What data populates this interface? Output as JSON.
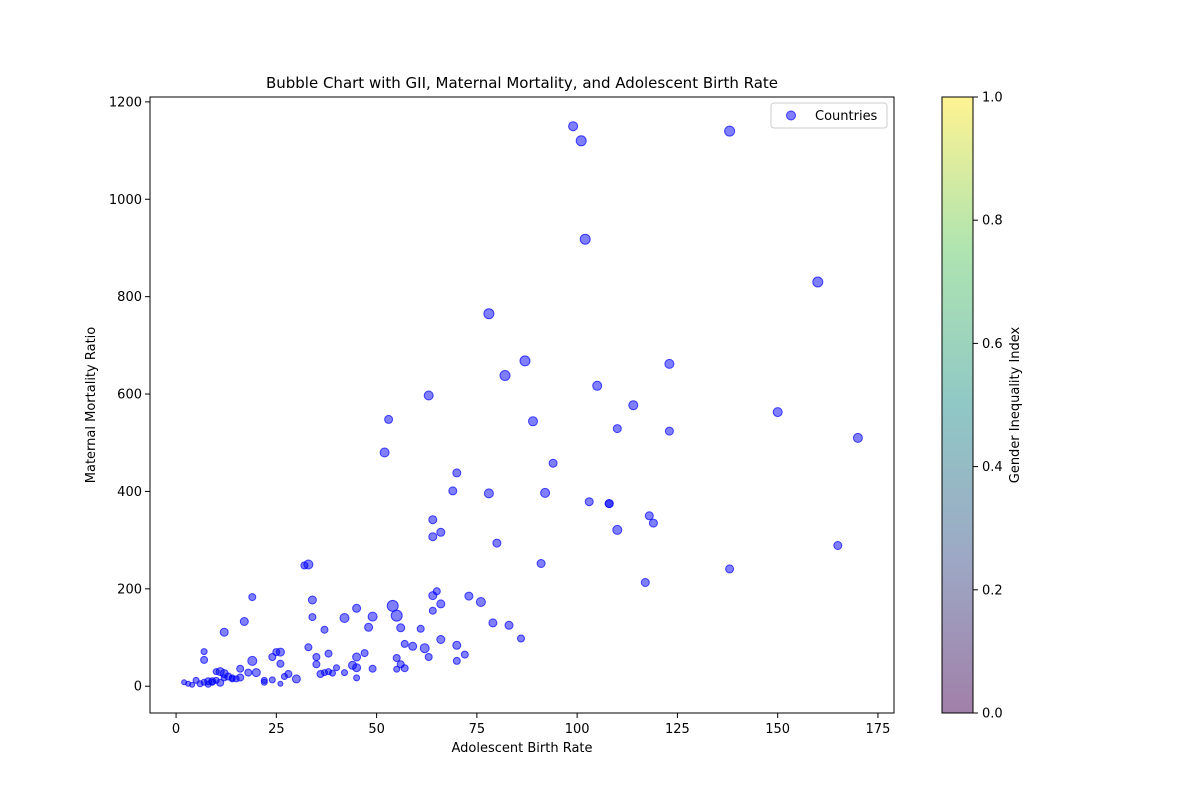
{
  "chart_data": {
    "type": "scatter",
    "title": "Bubble Chart with GII, Maternal Mortality, and Adolescent Birth Rate",
    "xlabel": "Adolescent Birth Rate",
    "ylabel": "Maternal Mortality Ratio",
    "xlim": [
      -6.5,
      179
    ],
    "ylim": [
      -55,
      1210
    ],
    "xticks": [
      0,
      25,
      50,
      75,
      100,
      125,
      150,
      175
    ],
    "yticks": [
      0,
      200,
      400,
      600,
      800,
      1000,
      1200
    ],
    "legend": {
      "label": "Countries",
      "location": "upper right"
    },
    "marker_color": "#0000ff",
    "marker_alpha": 0.5,
    "colorbar": {
      "label": "Gender Inequality Index",
      "range": [
        0.0,
        1.0
      ],
      "ticks": [
        "0.0",
        "0.2",
        "0.4",
        "0.6",
        "0.8",
        "1.0"
      ],
      "colormap": "viridis"
    },
    "series": [
      {
        "name": "Countries",
        "x": [
          99,
          101,
          138,
          102,
          160,
          78,
          87,
          82,
          123,
          63,
          105,
          114,
          53,
          150,
          89,
          110,
          123,
          170,
          52,
          94,
          108,
          70,
          69,
          78,
          92,
          103,
          108,
          118,
          119,
          110,
          64,
          66,
          64,
          80,
          165,
          91,
          138,
          117,
          33,
          32,
          19,
          65,
          34,
          73,
          76,
          64,
          66,
          54,
          45,
          55,
          49,
          34,
          42,
          48,
          79,
          83,
          37,
          56,
          86,
          64,
          66,
          61,
          70,
          57,
          62,
          17,
          12,
          59,
          63,
          72,
          47,
          45,
          55,
          70,
          35,
          7,
          19,
          24,
          25,
          26,
          33,
          38,
          44,
          35,
          26,
          56,
          57,
          45,
          49,
          55,
          20,
          16,
          7,
          11,
          12,
          18,
          10,
          8,
          9,
          6,
          5,
          4,
          3,
          2,
          15,
          16,
          13,
          12,
          9,
          10,
          22,
          30,
          28,
          27,
          36,
          37,
          40,
          39,
          38,
          42,
          14,
          14,
          11,
          7,
          8,
          45,
          22,
          24,
          26
        ],
        "y": [
          1150,
          1120,
          1140,
          918,
          830,
          765,
          668,
          638,
          662,
          597,
          617,
          577,
          548,
          563,
          544,
          529,
          524,
          510,
          480,
          458,
          375,
          438,
          401,
          396,
          397,
          379,
          375,
          350,
          335,
          321,
          342,
          316,
          307,
          294,
          289,
          252,
          241,
          213,
          250,
          248,
          183,
          195,
          177,
          185,
          173,
          186,
          169,
          165,
          160,
          145,
          143,
          142,
          140,
          121,
          130,
          125,
          116,
          120,
          98,
          155,
          96,
          118,
          84,
          87,
          78,
          133,
          111,
          82,
          60,
          65,
          68,
          60,
          58,
          52,
          60,
          71,
          52,
          60,
          70,
          70,
          80,
          67,
          43,
          45,
          46,
          45,
          37,
          38,
          36,
          35,
          28,
          36,
          54,
          30,
          26,
          28,
          30,
          10,
          8,
          5,
          12,
          3,
          5,
          8,
          15,
          18,
          20,
          17,
          10,
          12,
          12,
          15,
          25,
          20,
          25,
          28,
          38,
          27,
          30,
          28,
          15,
          17,
          7,
          8,
          4,
          17,
          8,
          13,
          5
        ],
        "size": [
          9,
          10,
          10,
          10,
          10,
          10,
          10,
          10,
          9,
          9,
          9,
          9,
          8,
          9,
          9,
          8,
          8,
          9,
          9,
          8,
          8,
          8,
          8,
          9,
          9,
          8,
          8,
          8,
          8,
          9,
          8,
          8,
          8,
          8,
          8,
          8,
          8,
          8,
          9,
          7,
          7,
          7,
          8,
          8,
          9,
          8,
          8,
          11,
          8,
          11,
          9,
          7,
          9,
          8,
          8,
          8,
          7,
          8,
          7,
          7,
          8,
          7,
          8,
          7,
          9,
          8,
          8,
          8,
          7,
          7,
          7,
          8,
          7,
          7,
          7,
          6,
          9,
          7,
          7,
          8,
          7,
          7,
          8,
          7,
          7,
          7,
          7,
          8,
          7,
          6,
          8,
          7,
          7,
          8,
          8,
          7,
          6,
          7,
          6,
          6,
          6,
          5,
          5,
          5,
          6,
          7,
          7,
          6,
          7,
          6,
          6,
          8,
          7,
          6,
          7,
          6,
          6,
          6,
          6,
          6,
          6,
          6,
          7,
          6,
          6,
          6,
          6,
          6,
          5
        ]
      }
    ]
  }
}
